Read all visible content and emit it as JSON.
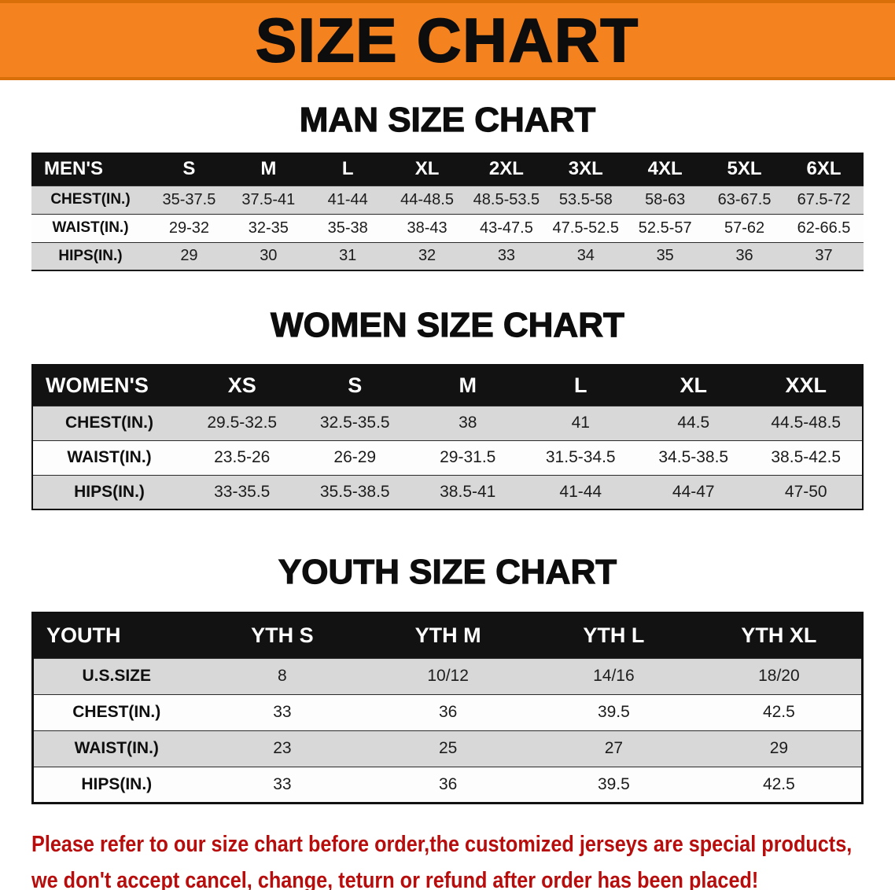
{
  "banner": {
    "title": "SIZE CHART"
  },
  "sections": [
    {
      "heading": "MAN SIZE CHART",
      "table": {
        "header": [
          "MEN'S",
          "S",
          "M",
          "L",
          "XL",
          "2XL",
          "3XL",
          "4XL",
          "5XL",
          "6XL"
        ],
        "rows": [
          [
            "CHEST(IN.)",
            "35-37.5",
            "37.5-41",
            "41-44",
            "44-48.5",
            "48.5-53.5",
            "53.5-58",
            "58-63",
            "63-67.5",
            "67.5-72"
          ],
          [
            "WAIST(IN.)",
            "29-32",
            "32-35",
            "35-38",
            "38-43",
            "43-47.5",
            "47.5-52.5",
            "52.5-57",
            "57-62",
            "62-66.5"
          ],
          [
            "HIPS(IN.)",
            "29",
            "30",
            "31",
            "32",
            "33",
            "34",
            "35",
            "36",
            "37"
          ]
        ]
      }
    },
    {
      "heading": "WOMEN SIZE CHART",
      "table": {
        "header": [
          "WOMEN'S",
          "XS",
          "S",
          "M",
          "L",
          "XL",
          "XXL"
        ],
        "rows": [
          [
            "CHEST(IN.)",
            "29.5-32.5",
            "32.5-35.5",
            "38",
            "41",
            "44.5",
            "44.5-48.5"
          ],
          [
            "WAIST(IN.)",
            "23.5-26",
            "26-29",
            "29-31.5",
            "31.5-34.5",
            "34.5-38.5",
            "38.5-42.5"
          ],
          [
            "HIPS(IN.)",
            "33-35.5",
            "35.5-38.5",
            "38.5-41",
            "41-44",
            "44-47",
            "47-50"
          ]
        ]
      }
    },
    {
      "heading": "YOUTH SIZE CHART",
      "table": {
        "header": [
          "YOUTH",
          "YTH S",
          "YTH M",
          "YTH L",
          "YTH XL"
        ],
        "rows": [
          [
            "U.S.SIZE",
            "8",
            "10/12",
            "14/16",
            "18/20"
          ],
          [
            "CHEST(IN.)",
            "33",
            "36",
            "39.5",
            "42.5"
          ],
          [
            "WAIST(IN.)",
            "23",
            "25",
            "27",
            "29"
          ],
          [
            "HIPS(IN.)",
            "33",
            "36",
            "39.5",
            "42.5"
          ]
        ]
      }
    }
  ],
  "footer": {
    "line1": "Please refer to our size chart before order,the customized jerseys are special products,",
    "line2": "we don't accept cancel, change, teturn or refund after order has been placed!"
  },
  "colors": {
    "banner_bg": "#f4821e",
    "header_bg": "#121212",
    "row_alt_bg": "#d8d8d8",
    "footer_text": "#b70d0d"
  }
}
